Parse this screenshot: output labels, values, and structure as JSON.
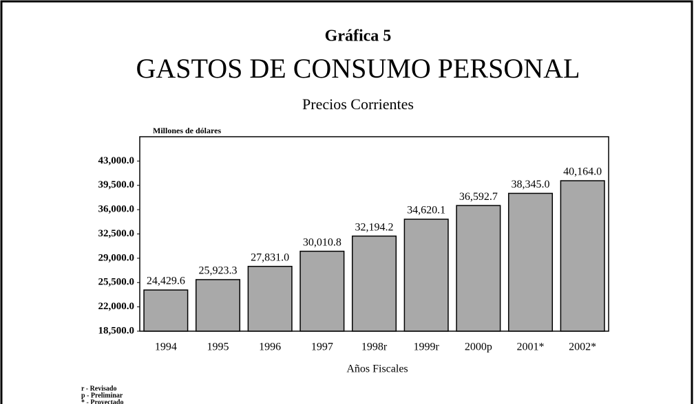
{
  "chart_data": {
    "type": "bar",
    "title": "Gráfica 5",
    "subtitle": "GASTOS DE CONSUMO PERSONAL",
    "subtitle2": "Precios Corrientes",
    "y_label": "Millones de dólares",
    "x_label": "Años Fiscales",
    "categories": [
      "1994",
      "1995",
      "1996",
      "1997",
      "1998r",
      "1999r",
      "2000p",
      "2001*",
      "2002*"
    ],
    "values": [
      24429.6,
      25923.3,
      27831.0,
      30010.8,
      32194.2,
      34620.1,
      36592.7,
      38345.0,
      40164.0
    ],
    "value_labels": [
      "24,429.6",
      "25,923.3",
      "27,831.0",
      "30,010.8",
      "32,194.2",
      "34,620.1",
      "36,592.7",
      "38,345.0",
      "40,164.0"
    ],
    "color": "#a9a9a9",
    "ylim": [
      18500,
      46500
    ],
    "yticks": [
      {
        "value": 18500,
        "label": "18,500.0"
      },
      {
        "value": 22000,
        "label": "22,000.0"
      },
      {
        "value": 25500,
        "label": "25,500.0"
      },
      {
        "value": 29000,
        "label": "29,000.0"
      },
      {
        "value": 32500,
        "label": "32,500.0"
      },
      {
        "value": 36000,
        "label": "36,000.0"
      },
      {
        "value": 39500,
        "label": "39,500.0"
      },
      {
        "value": 43000,
        "label": "43,000.0"
      }
    ],
    "notes": [
      "r - Revisado",
      "p - Preliminar",
      "* - Proyectado"
    ]
  }
}
